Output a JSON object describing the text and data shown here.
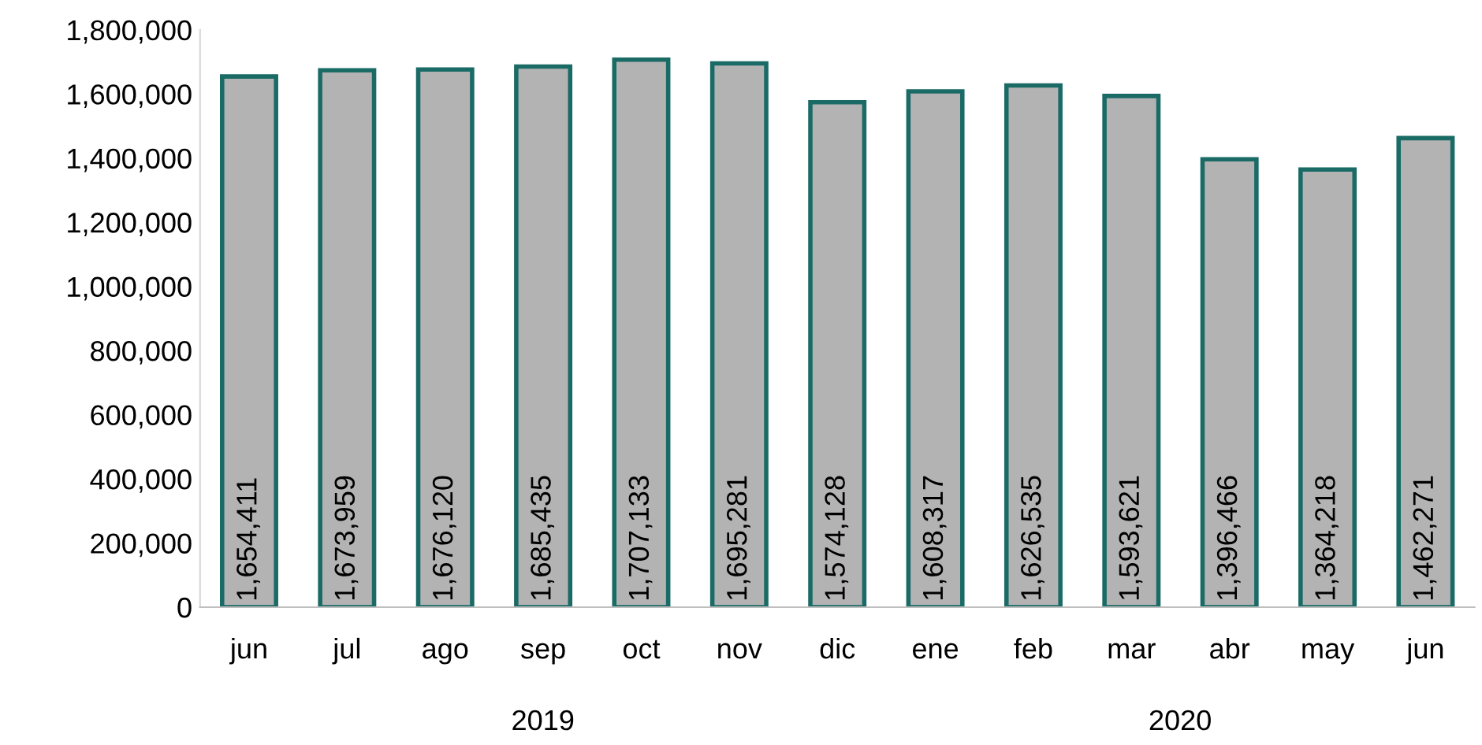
{
  "chart_data": {
    "type": "bar",
    "categories": [
      "jun",
      "jul",
      "ago",
      "sep",
      "oct",
      "nov",
      "dic",
      "ene",
      "feb",
      "mar",
      "abr",
      "may",
      "jun"
    ],
    "values": [
      1654411,
      1673959,
      1676120,
      1685435,
      1707133,
      1695281,
      1574128,
      1608317,
      1626535,
      1593621,
      1396466,
      1364218,
      1462271
    ],
    "value_labels": [
      "1,654,411",
      "1,673,959",
      "1,676,120",
      "1,685,435",
      "1,707,133",
      "1,695,281",
      "1,574,128",
      "1,608,317",
      "1,626,535",
      "1,593,621",
      "1,396,466",
      "1,364,218",
      "1,462,271"
    ],
    "color": "#b3b3b3",
    "ylim": [
      0,
      1800000
    ],
    "yticks": [
      {
        "value": 0,
        "label": "0"
      },
      {
        "value": 200000,
        "label": "200,000"
      },
      {
        "value": 400000,
        "label": "400,000"
      },
      {
        "value": 600000,
        "label": "600,000"
      },
      {
        "value": 800000,
        "label": "800,000"
      },
      {
        "value": 1000000,
        "label": "1,000,000"
      },
      {
        "value": 1200000,
        "label": "1,200,000"
      },
      {
        "value": 1400000,
        "label": "1,400,000"
      },
      {
        "value": 1600000,
        "label": "1,600,000"
      },
      {
        "value": 1800000,
        "label": "1,800,000"
      }
    ],
    "annotations": [
      "2019",
      "2020"
    ],
    "grid": false,
    "legend": false
  }
}
